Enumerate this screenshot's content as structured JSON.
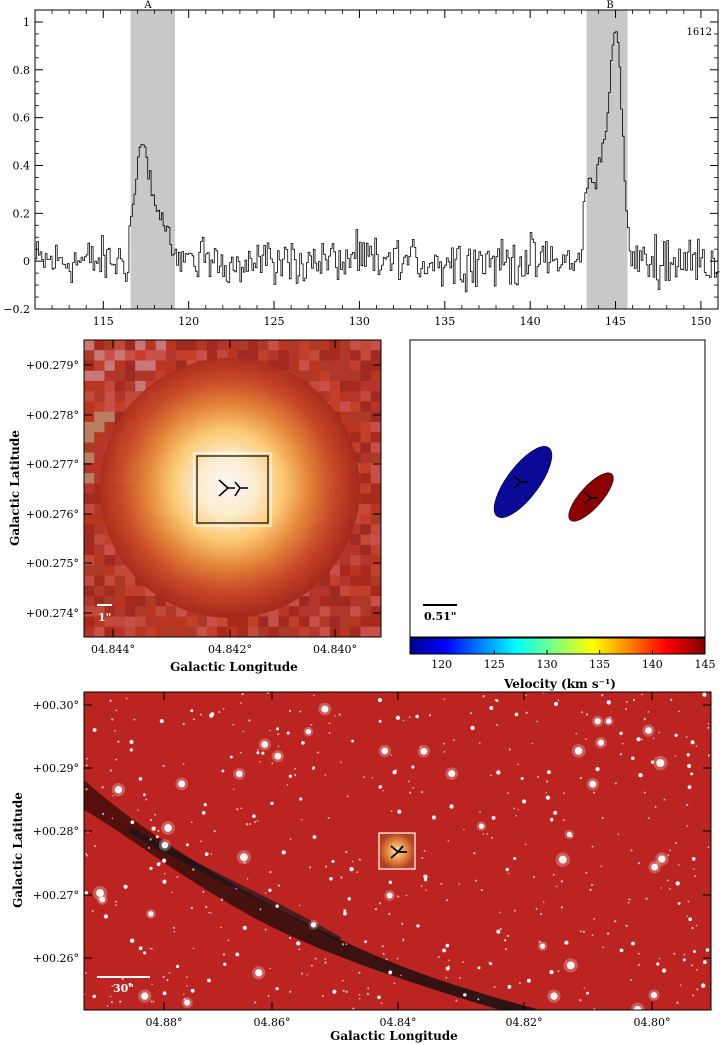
{
  "chart_data": [
    {
      "type": "line",
      "series_label": "1612",
      "xlim": [
        111,
        151
      ],
      "ylim": [
        -0.2,
        1.05
      ],
      "x_ticks": [
        "115",
        "120",
        "125",
        "130",
        "135",
        "140",
        "145",
        "150"
      ],
      "y_ticks": [
        "−0.2",
        "0",
        "0.2",
        "0.4",
        "0.6",
        "0.8",
        "1"
      ],
      "shaded_regions": [
        {
          "label": "A",
          "from": 116.6,
          "to": 119.2
        },
        {
          "label": "B",
          "from": 143.3,
          "to": 145.7
        }
      ],
      "peaks": [
        {
          "x": [
            116.4,
            116.6,
            116.8,
            117.0,
            117.2,
            117.4,
            117.6,
            117.8,
            118.0,
            118.2,
            118.4,
            118.6,
            118.8,
            119.0,
            119.2
          ],
          "y": [
            0.12,
            0.22,
            0.3,
            0.42,
            0.49,
            0.47,
            0.38,
            0.3,
            0.22,
            0.18,
            0.2,
            0.14,
            0.12,
            0.06,
            0.05
          ]
        },
        {
          "x": [
            143.0,
            143.2,
            143.4,
            143.6,
            143.8,
            144.0,
            144.2,
            144.4,
            144.6,
            144.8,
            145.0,
            145.2,
            145.4,
            145.6,
            145.8
          ],
          "y": [
            0.15,
            0.28,
            0.32,
            0.36,
            0.34,
            0.4,
            0.48,
            0.58,
            0.74,
            0.9,
            0.98,
            0.78,
            0.5,
            0.18,
            0.05
          ]
        }
      ],
      "noise_rms": 0.06,
      "grid": false
    },
    {
      "type": "heatmap",
      "xlabel": "Galactic Longitude",
      "ylabel": "Galactic Latitude",
      "x_ticks": [
        "04.844°",
        "04.842°",
        "04.840°"
      ],
      "y_ticks": [
        "+00.279°",
        "+00.278°",
        "+00.277°",
        "+00.276°",
        "+00.275°",
        "+00.274°"
      ],
      "scale_bar": "1\"",
      "source_position": {
        "l": 4.8417,
        "b": 0.2765
      }
    },
    {
      "type": "scatter",
      "xlabel": "Velocity (km s⁻¹)",
      "colorbar_ticks": [
        "120",
        "125",
        "130",
        "135",
        "140",
        "145"
      ],
      "colorbar_range": [
        117,
        145
      ],
      "scale_bar": "0.51\"",
      "points": [
        {
          "label": "A",
          "velocity": 117.8,
          "color": "#0a0a96"
        },
        {
          "label": "B",
          "velocity": 144.6,
          "color": "#8b0000"
        }
      ]
    },
    {
      "type": "heatmap",
      "xlabel": "Galactic Longitude",
      "ylabel": "Galactic Latitude",
      "x_ticks": [
        "04.88°",
        "04.86°",
        "04.84°",
        "04.82°",
        "04.80°"
      ],
      "y_ticks": [
        "+00.30°",
        "+00.29°",
        "+00.28°",
        "+00.27°",
        "+00.26°"
      ],
      "scale_bar": "30\"",
      "source_position": {
        "l": 4.8417,
        "b": 0.2765
      }
    }
  ]
}
